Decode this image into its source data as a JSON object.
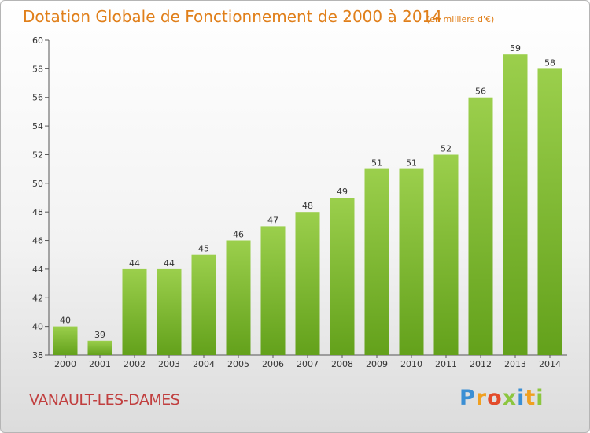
{
  "title": "Dotation Globale de Fonctionnement de 2000 à 2014",
  "subtitle": "(en milliers d'€)",
  "commune": "VANAULT-LES-DAMES",
  "brand": {
    "letters": [
      "P",
      "r",
      "o",
      "x",
      "i",
      "t",
      "i"
    ],
    "colors": [
      "#3b8fd4",
      "#f0a020",
      "#e34b2a",
      "#8cc63f",
      "#3b8fd4",
      "#f0a020",
      "#8cc63f"
    ]
  },
  "chart_data": {
    "type": "bar",
    "categories": [
      "2000",
      "2001",
      "2002",
      "2003",
      "2004",
      "2005",
      "2006",
      "2007",
      "2008",
      "2009",
      "2010",
      "2011",
      "2012",
      "2013",
      "2014"
    ],
    "values": [
      40,
      39,
      44,
      44,
      45,
      46,
      47,
      48,
      49,
      51,
      51,
      52,
      56,
      59,
      58
    ],
    "title": "Dotation Globale de Fonctionnement de 2000 à 2014",
    "ylim": [
      38,
      60
    ],
    "yticks": [
      38,
      40,
      42,
      44,
      46,
      48,
      50,
      52,
      54,
      56,
      58,
      60
    ],
    "grid": false,
    "bar_color_top": "#9bcf4c",
    "bar_color_bottom": "#63a11b"
  }
}
